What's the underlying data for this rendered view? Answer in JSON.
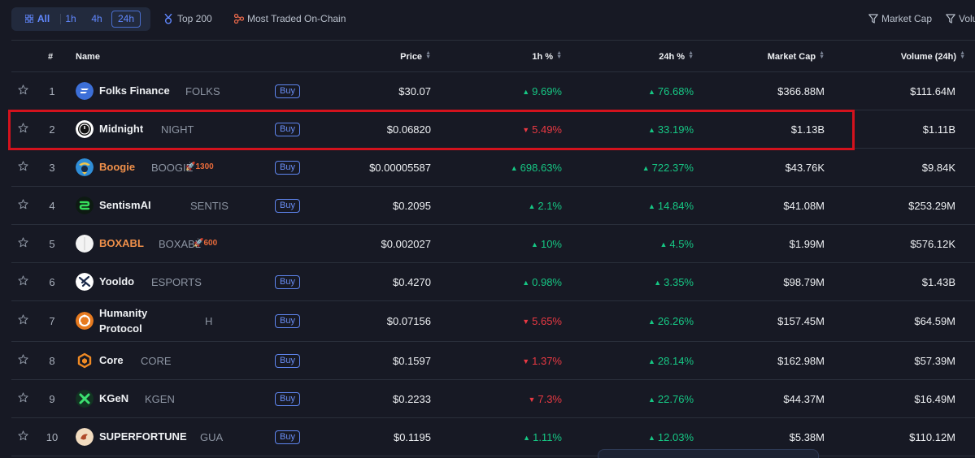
{
  "toolbar": {
    "segments": [
      "All",
      "1h",
      "4h",
      "24h"
    ],
    "selected_segment": "24h",
    "top200": "Top 200",
    "most_traded": "Most Traded On-Chain",
    "filter_market_cap": "Market Cap",
    "filter_volume": "Volu"
  },
  "table": {
    "headers": {
      "rank": "#",
      "name": "Name",
      "price": "Price",
      "change_1h": "1h %",
      "change_24h": "24h %",
      "market_cap": "Market Cap",
      "volume": "Volume (24h)"
    },
    "buy_label": "Buy",
    "rows": [
      {
        "rank": "1",
        "name": "Folks Finance",
        "symbol": "FOLKS",
        "price": "$30.07",
        "ch1h": "9.69%",
        "ch1h_dir": "up",
        "ch24h": "76.68%",
        "ch24h_dir": "up",
        "market_cap": "$366.88M",
        "volume": "$111.64M"
      },
      {
        "rank": "2",
        "name": "Midnight",
        "symbol": "NIGHT",
        "price": "$0.06820",
        "ch1h": "5.49%",
        "ch1h_dir": "down",
        "ch24h": "33.19%",
        "ch24h_dir": "up",
        "market_cap": "$1.13B",
        "volume": "$1.11B"
      },
      {
        "rank": "3",
        "name": "Boogie",
        "symbol": "BOOGIE",
        "rocket": "1300",
        "price": "$0.00005587",
        "ch1h": "698.63%",
        "ch1h_dir": "up",
        "ch24h": "722.37%",
        "ch24h_dir": "up",
        "market_cap": "$43.76K",
        "volume": "$9.84K"
      },
      {
        "rank": "4",
        "name": "SentismAI",
        "symbol": "SENTIS",
        "price": "$0.2095",
        "ch1h": "2.1%",
        "ch1h_dir": "up",
        "ch24h": "14.84%",
        "ch24h_dir": "up",
        "market_cap": "$41.08M",
        "volume": "$253.29M"
      },
      {
        "rank": "5",
        "name": "BOXABL",
        "symbol": "BOXABL",
        "rocket": "600",
        "price": "$0.002027",
        "ch1h": "10%",
        "ch1h_dir": "up",
        "ch24h": "4.5%",
        "ch24h_dir": "up",
        "market_cap": "$1.99M",
        "volume": "$576.12K"
      },
      {
        "rank": "6",
        "name": "Yooldo",
        "symbol": "ESPORTS",
        "price": "$0.4270",
        "ch1h": "0.98%",
        "ch1h_dir": "up",
        "ch24h": "3.35%",
        "ch24h_dir": "up",
        "market_cap": "$98.79M",
        "volume": "$1.43B"
      },
      {
        "rank": "7",
        "name_line1": "Humanity",
        "name_line2": "Protocol",
        "symbol": "H",
        "price": "$0.07156",
        "ch1h": "5.65%",
        "ch1h_dir": "down",
        "ch24h": "26.26%",
        "ch24h_dir": "up",
        "market_cap": "$157.45M",
        "volume": "$64.59M"
      },
      {
        "rank": "8",
        "name": "Core",
        "symbol": "CORE",
        "price": "$0.1597",
        "ch1h": "1.37%",
        "ch1h_dir": "down",
        "ch24h": "28.14%",
        "ch24h_dir": "up",
        "market_cap": "$162.98M",
        "volume": "$57.39M"
      },
      {
        "rank": "9",
        "name": "KGeN",
        "symbol": "KGEN",
        "price": "$0.2233",
        "ch1h": "7.3%",
        "ch1h_dir": "down",
        "ch24h": "22.76%",
        "ch24h_dir": "up",
        "market_cap": "$44.37M",
        "volume": "$16.49M"
      },
      {
        "rank": "10",
        "name": "SUPERFORTUNE",
        "symbol": "GUA",
        "price": "$0.1195",
        "ch1h": "1.11%",
        "ch1h_dir": "up",
        "ch24h": "12.03%",
        "ch24h_dir": "up",
        "market_cap": "$5.38M",
        "volume": "$110.12M"
      }
    ]
  },
  "colors": {
    "up": "#16c784",
    "down": "#ea3943",
    "accent": "#6188ff",
    "highlight": "#d3121d"
  }
}
